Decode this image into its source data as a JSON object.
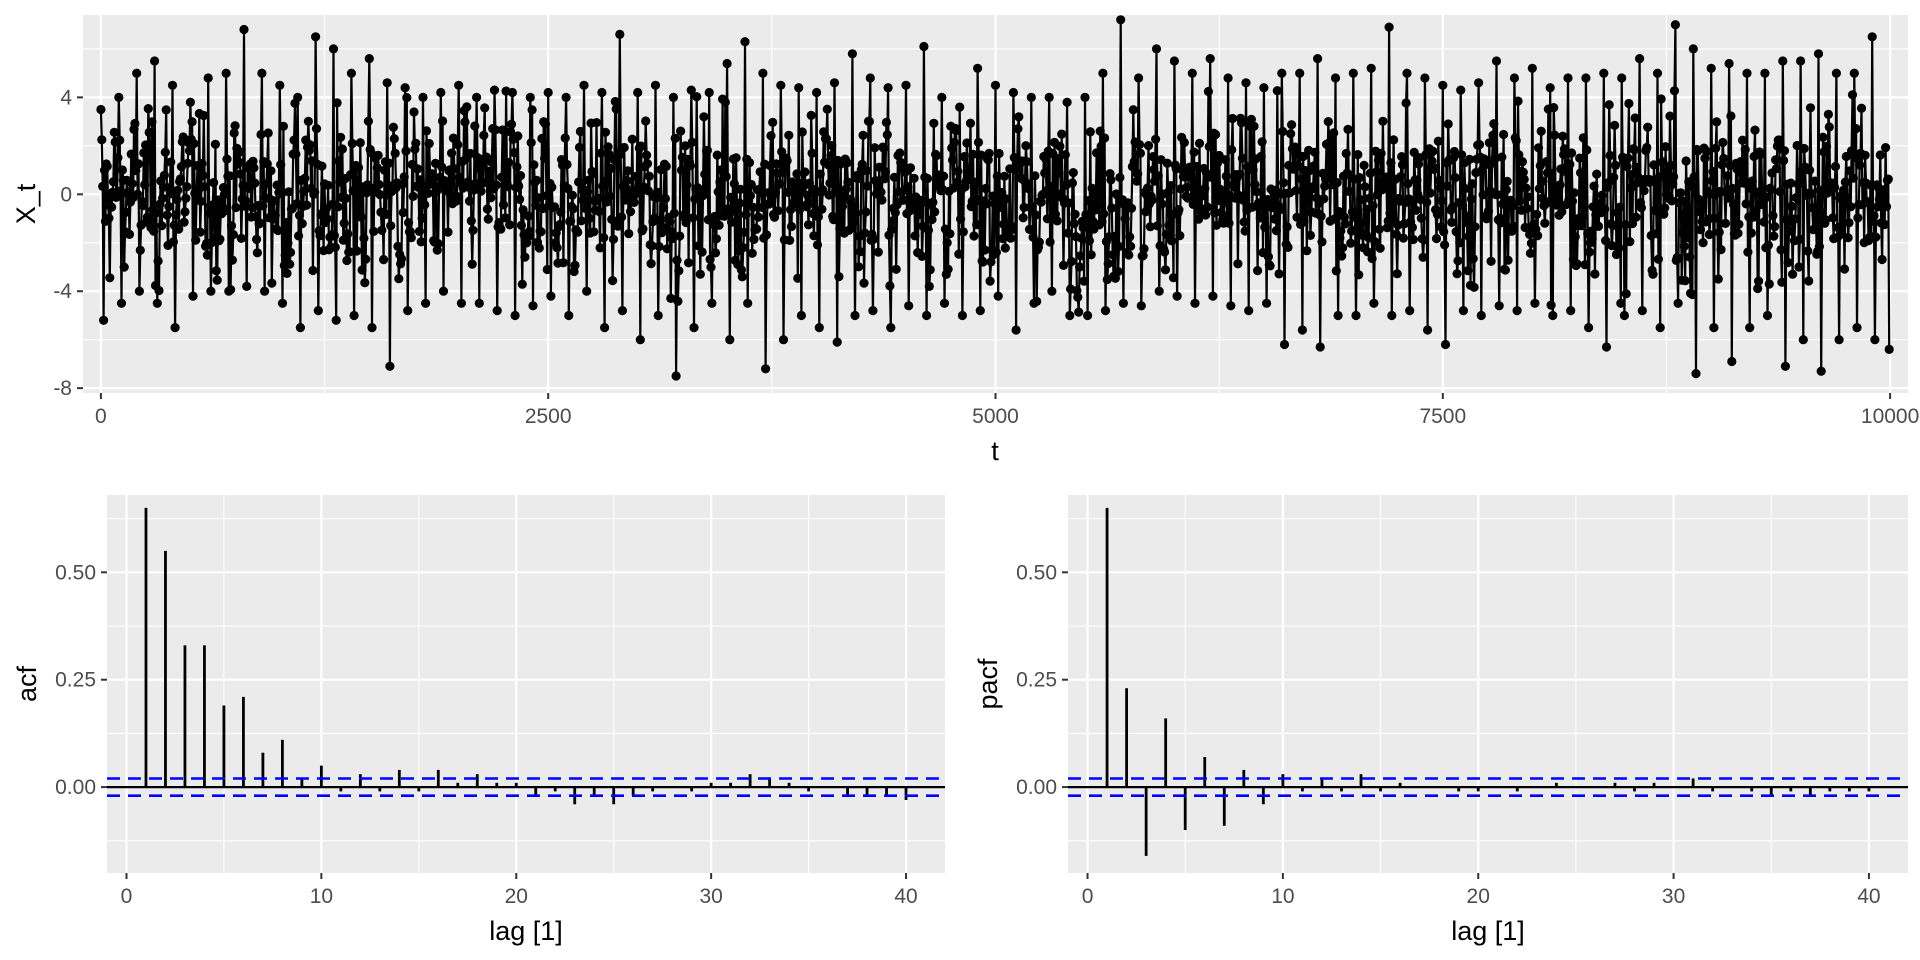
{
  "chart_data": [
    {
      "type": "line",
      "xlabel": "t",
      "ylabel": "X_t",
      "xlim": [
        -100,
        10100
      ],
      "ylim": [
        -8.2,
        7.4
      ],
      "x_ticks": [
        0,
        2500,
        5000,
        7500,
        10000
      ],
      "x_tick_labels": [
        "0",
        "2500",
        "5000",
        "7500",
        "10000"
      ],
      "y_ticks": [
        -8,
        -4,
        0,
        4
      ],
      "y_tick_labels": [
        "-8",
        "-4",
        "0",
        "4"
      ],
      "grid": true,
      "points_shown": true,
      "n_observations": 10000,
      "series": [
        {
          "description": "stationary AR-type series; values fluctuate around 0, mostly within ±4, extremes about -7.5 to 7.2",
          "x": [
            0,
            100,
            200,
            300,
            400,
            500,
            600,
            700,
            800,
            900,
            1000,
            1100,
            1200,
            1300,
            1400,
            1500,
            1600,
            1700,
            1800,
            1900,
            2000,
            2100,
            2200,
            2300,
            2400,
            2500,
            2600,
            2700,
            2800,
            2900,
            3000,
            3100,
            3200,
            3300,
            3400,
            3500,
            3600,
            3700,
            3800,
            3900,
            4000,
            4100,
            4200,
            4300,
            4400,
            4500,
            4600,
            4700,
            4800,
            4900,
            5000,
            5100,
            5200,
            5300,
            5400,
            5500,
            5600,
            5700,
            5800,
            5900,
            6000,
            6100,
            6200,
            6300,
            6400,
            6500,
            6600,
            6700,
            6800,
            6900,
            7000,
            7100,
            7200,
            7300,
            7400,
            7500,
            7600,
            7700,
            7800,
            7900,
            8000,
            8100,
            8200,
            8300,
            8400,
            8500,
            8600,
            8700,
            8800,
            8900,
            9000,
            9100,
            9200,
            9300,
            9400,
            9500,
            9600,
            9700,
            9800,
            9900,
            10000
          ],
          "max": [
            3.5,
            4.0,
            5.0,
            5.5,
            4.5,
            3.8,
            4.8,
            5.0,
            6.8,
            5.0,
            4.5,
            4.0,
            6.5,
            6.0,
            5.0,
            5.6,
            4.6,
            4.4,
            4.0,
            4.2,
            4.5,
            4.0,
            4.3,
            4.2,
            4.0,
            4.2,
            4.0,
            4.5,
            4.2,
            6.6,
            4.2,
            4.5,
            4.0,
            4.3,
            4.2,
            5.4,
            6.3,
            5.0,
            4.5,
            4.4,
            4.2,
            4.6,
            5.8,
            4.8,
            4.4,
            4.5,
            6.1,
            4.0,
            3.6,
            5.2,
            4.5,
            4.2,
            4.0,
            4.0,
            3.8,
            4.0,
            5.0,
            7.2,
            4.8,
            6.0,
            5.5,
            5.0,
            5.6,
            4.8,
            4.6,
            4.4,
            5.0,
            5.0,
            5.6,
            4.8,
            5.0,
            5.2,
            6.9,
            5.0,
            4.8,
            4.5,
            4.3,
            4.6,
            5.5,
            4.8,
            5.2,
            4.4,
            4.8,
            4.8,
            5.0,
            4.8,
            5.6,
            5.0,
            7.0,
            6.0,
            5.2,
            5.4,
            5.0,
            5.0,
            5.5,
            5.5,
            5.8,
            5.0,
            5.0,
            6.5,
            6.8
          ],
          "min": [
            -5.2,
            -4.5,
            -4.0,
            -4.5,
            -5.5,
            -4.2,
            -4.0,
            -4.0,
            -3.8,
            -4.0,
            -4.5,
            -5.5,
            -4.8,
            -5.2,
            -5.0,
            -5.5,
            -7.1,
            -4.8,
            -4.5,
            -4.0,
            -4.5,
            -4.5,
            -4.8,
            -5.0,
            -4.6,
            -4.2,
            -5.0,
            -4.0,
            -5.5,
            -4.8,
            -6.0,
            -5.0,
            -7.5,
            -5.5,
            -4.5,
            -6.0,
            -4.5,
            -7.2,
            -6.0,
            -5.0,
            -5.5,
            -6.1,
            -5.0,
            -4.8,
            -5.5,
            -4.6,
            -5.0,
            -4.5,
            -5.0,
            -4.8,
            -4.2,
            -5.6,
            -4.5,
            -4.0,
            -5.0,
            -5.0,
            -4.8,
            -4.5,
            -4.6,
            -4.0,
            -4.2,
            -4.5,
            -4.2,
            -4.6,
            -4.8,
            -4.5,
            -6.2,
            -5.6,
            -6.3,
            -5.0,
            -5.0,
            -4.5,
            -5.0,
            -4.8,
            -5.6,
            -6.2,
            -4.8,
            -5.0,
            -4.6,
            -4.8,
            -4.5,
            -5.0,
            -4.8,
            -5.5,
            -6.3,
            -5.0,
            -4.8,
            -5.5,
            -4.5,
            -7.4,
            -5.5,
            -6.9,
            -5.5,
            -5.0,
            -7.1,
            -6.0,
            -7.3,
            -6.0,
            -5.5,
            -6.0,
            -6.4
          ]
        }
      ]
    },
    {
      "type": "bar",
      "xlabel": "lag [1]",
      "ylabel": "acf",
      "xlim": [
        -1,
        42
      ],
      "ylim": [
        -0.2,
        0.68
      ],
      "x_ticks": [
        0,
        10,
        20,
        30,
        40
      ],
      "x_tick_labels": [
        "0",
        "10",
        "20",
        "30",
        "40"
      ],
      "y_ticks": [
        0.0,
        0.25,
        0.5
      ],
      "y_tick_labels": [
        "0.00",
        "0.25",
        "0.50"
      ],
      "grid": true,
      "ci": 0.02,
      "categories": [
        1,
        2,
        3,
        4,
        5,
        6,
        7,
        8,
        9,
        10,
        11,
        12,
        13,
        14,
        15,
        16,
        17,
        18,
        19,
        20,
        21,
        22,
        23,
        24,
        25,
        26,
        27,
        28,
        29,
        30,
        31,
        32,
        33,
        34,
        35,
        36,
        37,
        38,
        39,
        40
      ],
      "values": [
        0.65,
        0.55,
        0.33,
        0.33,
        0.19,
        0.21,
        0.08,
        0.11,
        0.02,
        0.05,
        -0.01,
        0.03,
        -0.01,
        0.04,
        -0.01,
        0.04,
        0.01,
        0.03,
        0.01,
        0.01,
        -0.02,
        -0.01,
        -0.04,
        -0.02,
        -0.04,
        -0.02,
        -0.01,
        0.0,
        -0.01,
        0.01,
        0.01,
        0.03,
        0.02,
        0.01,
        -0.01,
        0.0,
        -0.02,
        -0.02,
        -0.02,
        -0.03
      ]
    },
    {
      "type": "bar",
      "xlabel": "lag [1]",
      "ylabel": "pacf",
      "xlim": [
        -1,
        42
      ],
      "ylim": [
        -0.2,
        0.68
      ],
      "x_ticks": [
        0,
        10,
        20,
        30,
        40
      ],
      "x_tick_labels": [
        "0",
        "10",
        "20",
        "30",
        "40"
      ],
      "y_ticks": [
        0.0,
        0.25,
        0.5
      ],
      "y_tick_labels": [
        "0.00",
        "0.25",
        "0.50"
      ],
      "grid": true,
      "ci": 0.02,
      "categories": [
        1,
        2,
        3,
        4,
        5,
        6,
        7,
        8,
        9,
        10,
        11,
        12,
        13,
        14,
        15,
        16,
        17,
        18,
        19,
        20,
        21,
        22,
        23,
        24,
        25,
        26,
        27,
        28,
        29,
        30,
        31,
        32,
        33,
        34,
        35,
        36,
        37,
        38,
        39,
        40
      ],
      "values": [
        0.65,
        0.23,
        -0.16,
        0.16,
        -0.1,
        0.07,
        -0.09,
        0.04,
        -0.04,
        0.03,
        -0.01,
        0.02,
        -0.01,
        0.03,
        -0.01,
        0.01,
        0.0,
        0.0,
        -0.01,
        -0.01,
        0.0,
        -0.01,
        0.0,
        0.01,
        0.0,
        0.0,
        0.01,
        -0.01,
        0.01,
        0.0,
        0.02,
        -0.01,
        0.0,
        -0.01,
        -0.02,
        -0.01,
        -0.02,
        -0.01,
        -0.01,
        -0.01
      ]
    }
  ],
  "colors": {
    "panel_background": "#EBEBEB",
    "grid": "#FFFFFF",
    "series": "#000000",
    "confidence_band": "#0000FF",
    "tick_label": "#4D4D4D"
  }
}
